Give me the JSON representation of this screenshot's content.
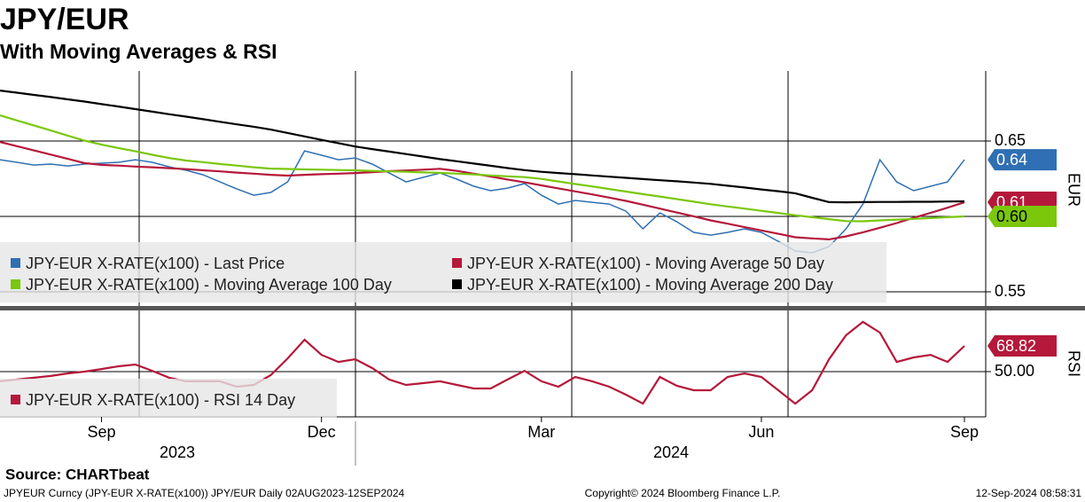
{
  "chart_data": [
    {
      "type": "line",
      "title": "JPY/EUR",
      "subtitle": "With Moving Averages & RSI",
      "ylabel": "EUR",
      "ylim": [
        0.5406,
        0.6965
      ],
      "yticks": [
        0.55,
        {
          "value": 0.6,
          "label": "0.60"
        },
        0.65
      ],
      "grid": true,
      "series": [
        {
          "name": "JPY-EUR X-RATE(x100) - Last Price",
          "color": "#2f6fb3",
          "last_label": "0.64",
          "values": [
            0.6376,
            0.6359,
            0.6341,
            0.6347,
            0.6335,
            0.6347,
            0.6353,
            0.6359,
            0.6376,
            0.6359,
            0.6329,
            0.6306,
            0.6276,
            0.6229,
            0.6182,
            0.6141,
            0.6159,
            0.6229,
            0.6435,
            0.6406,
            0.6376,
            0.6388,
            0.6347,
            0.6288,
            0.6229,
            0.6259,
            0.6288,
            0.6247,
            0.62,
            0.6171,
            0.6188,
            0.6218,
            0.6141,
            0.6082,
            0.6106,
            0.6094,
            0.6082,
            0.6035,
            0.5918,
            0.6024,
            0.5965,
            0.5894,
            0.5876,
            0.5894,
            0.5918,
            0.5894,
            0.5835,
            0.5771,
            0.5759,
            0.58,
            0.5918,
            0.6082,
            0.6376,
            0.6229,
            0.6171,
            0.62,
            0.6229,
            0.6376
          ]
        },
        {
          "name": "JPY-EUR X-RATE(x100) - Moving Average 50 Day",
          "color": "#b5183a",
          "last_label": "0.61",
          "values": [
            0.6494,
            0.6466,
            0.6438,
            0.641,
            0.6382,
            0.6354,
            0.6342,
            0.6337,
            0.6331,
            0.6326,
            0.632,
            0.6314,
            0.6306,
            0.6299,
            0.6291,
            0.6284,
            0.6276,
            0.6271,
            0.6276,
            0.628,
            0.6284,
            0.6288,
            0.6294,
            0.63,
            0.6305,
            0.631,
            0.6316,
            0.6302,
            0.6284,
            0.6265,
            0.6245,
            0.6226,
            0.6206,
            0.6186,
            0.6166,
            0.6146,
            0.6125,
            0.6103,
            0.6078,
            0.6052,
            0.6026,
            0.6001,
            0.5974,
            0.5952,
            0.5929,
            0.5907,
            0.5885,
            0.5862,
            0.5854,
            0.5848,
            0.5868,
            0.5895,
            0.5925,
            0.5956,
            0.5991,
            0.6024,
            0.6058,
            0.6094
          ]
        },
        {
          "name": "JPY-EUR X-RATE(x100) - Moving Average 100 Day",
          "color": "#7ac70c",
          "last_label": "0.60",
          "values": [
            0.6671,
            0.6637,
            0.6604,
            0.657,
            0.6536,
            0.6503,
            0.6476,
            0.6454,
            0.6432,
            0.6409,
            0.6387,
            0.6371,
            0.636,
            0.6348,
            0.6337,
            0.6326,
            0.6317,
            0.6315,
            0.6312,
            0.631,
            0.6308,
            0.6306,
            0.6302,
            0.6299,
            0.6296,
            0.6292,
            0.6289,
            0.6284,
            0.6279,
            0.6272,
            0.6266,
            0.6261,
            0.6249,
            0.6232,
            0.6215,
            0.6199,
            0.6182,
            0.6165,
            0.6148,
            0.6132,
            0.6115,
            0.6098,
            0.6081,
            0.6066,
            0.6052,
            0.6037,
            0.6023,
            0.6008,
            0.5995,
            0.5982,
            0.5969,
            0.5968,
            0.5974,
            0.5979,
            0.5984,
            0.5989,
            0.5995,
            0.6
          ]
        },
        {
          "name": "JPY-EUR X-RATE(x100) - Moving Average 200 Day",
          "color": "#000000",
          "values": [
            0.6835,
            0.6821,
            0.6806,
            0.6792,
            0.6777,
            0.6762,
            0.6745,
            0.6729,
            0.6712,
            0.6695,
            0.6678,
            0.6662,
            0.6645,
            0.6628,
            0.6611,
            0.6595,
            0.6576,
            0.6554,
            0.6531,
            0.6508,
            0.6486,
            0.6464,
            0.6447,
            0.643,
            0.6414,
            0.6397,
            0.638,
            0.6366,
            0.6351,
            0.6336,
            0.6321,
            0.6307,
            0.6296,
            0.6288,
            0.628,
            0.6272,
            0.6264,
            0.6256,
            0.6248,
            0.624,
            0.6233,
            0.6225,
            0.6216,
            0.6204,
            0.6192,
            0.6179,
            0.6167,
            0.6154,
            0.6124,
            0.6095,
            0.6094,
            0.6095,
            0.6096,
            0.6096,
            0.6097,
            0.6097,
            0.6099,
            0.61
          ]
        }
      ]
    },
    {
      "type": "line",
      "ylabel": "RSI",
      "ylim": [
        16.9,
        93.5
      ],
      "yticks": [
        {
          "value": 50,
          "label": "50.00"
        }
      ],
      "grid": true,
      "categories": [
        null,
        null,
        null,
        null,
        null,
        null,
        "Sep",
        null,
        null,
        null,
        null,
        null,
        null,
        null,
        null,
        null,
        null,
        null,
        null,
        "Dec",
        null,
        null,
        null,
        null,
        null,
        null,
        null,
        null,
        null,
        null,
        null,
        null,
        "Mar",
        null,
        null,
        null,
        null,
        null,
        null,
        null,
        null,
        null,
        null,
        null,
        null,
        "Jun",
        null,
        null,
        null,
        null,
        null,
        null,
        null,
        null,
        null,
        null,
        null,
        "Sep"
      ],
      "years": [
        "2023",
        "2024"
      ],
      "series": [
        {
          "name": "JPY-EUR X-RATE(x100) - RSI 14 Day",
          "color": "#b5183a",
          "last_label": "68.82",
          "values": [
            42.9,
            44.2,
            45.5,
            46.8,
            48.7,
            50,
            51.9,
            53.9,
            55.2,
            50.6,
            45.5,
            42.9,
            42.9,
            42.9,
            39,
            40.3,
            47.4,
            59.7,
            73.4,
            62.3,
            57.1,
            59.1,
            52.6,
            44.2,
            40.3,
            41.6,
            42.9,
            40.3,
            37.7,
            37.7,
            44.2,
            50.6,
            42.9,
            39,
            46.1,
            42.9,
            39,
            33.1,
            26.6,
            46.1,
            39.6,
            36.4,
            36.4,
            46.1,
            48.7,
            46.1,
            36.4,
            26.6,
            36.4,
            59.1,
            76.6,
            86.4,
            78.6,
            57.1,
            60.4,
            62.3,
            57.1,
            68.82
          ]
        }
      ]
    }
  ],
  "source": "Source: CHARTbeat",
  "footer": {
    "left": "JPYEUR Curncy (JPY-EUR X-RATE(x100)) JPY/EUR  Daily 02AUG2023-12SEP2024",
    "center": "Copyright© 2024 Bloomberg Finance L.P.",
    "right": "12-Sep-2024 08:58:31"
  }
}
